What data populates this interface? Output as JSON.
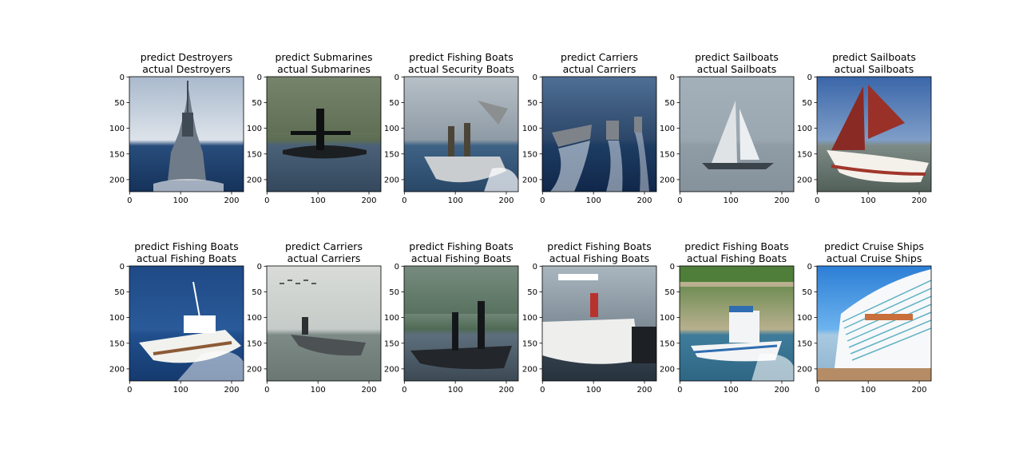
{
  "figure": {
    "panels": [
      {
        "predict_line": "predict Destroyers",
        "actual_line": "actual Destroyers",
        "image": "destroyer-photo",
        "palette": {
          "sky": "#a9b9cc",
          "horizon": "#dde3ea",
          "water": "#284d7c",
          "deep": "#15325a",
          "ship": "#6f7b88",
          "detail": "#3f4a55",
          "highlight": "#ffffff"
        }
      },
      {
        "predict_line": "predict Submarines",
        "actual_line": "actual Submarines",
        "image": "submarine-photo",
        "palette": {
          "sky": "#8f9a86",
          "horizon": "#5d6d52",
          "water": "#4a6178",
          "deep": "#34485d",
          "ship": "#1c1f22",
          "detail": "#0e1012",
          "highlight": "#9aa7b3"
        }
      },
      {
        "predict_line": "predict Fishing Boats",
        "actual_line": "actual Security Boats",
        "image": "security-boat-photo",
        "palette": {
          "sky": "#b7c0c7",
          "horizon": "#8e9aa5",
          "water": "#3e6285",
          "deep": "#2a4868",
          "ship": "#c9cdd0",
          "detail": "#4b4538",
          "highlight": "#ffffff"
        }
      },
      {
        "predict_line": "predict Carriers",
        "actual_line": "actual Carriers",
        "image": "carrier-group-photo",
        "palette": {
          "sky": "#4f6f95",
          "horizon": "#2b4668",
          "water": "#1d3c62",
          "deep": "#10274a",
          "ship": "#7e838a",
          "detail": "#4a4f56",
          "highlight": "#e8eef5"
        }
      },
      {
        "predict_line": "predict Sailboats",
        "actual_line": "actual Sailboats",
        "image": "sailboat-photo",
        "palette": {
          "sky": "#a3b0ba",
          "horizon": "#9aa7b1",
          "water": "#8f9ca6",
          "deep": "#85929c",
          "ship": "#dfe3e6",
          "detail": "#3b434a",
          "highlight": "#ffffff"
        }
      },
      {
        "predict_line": "predict Sailboats",
        "actual_line": "actual Sailboats",
        "image": "red-sail-boat-photo",
        "palette": {
          "sky": "#3a66a9",
          "horizon": "#7f9ec8",
          "water": "#7d8a86",
          "deep": "#52605a",
          "ship": "#8a2a25",
          "detail": "#2d1b17",
          "highlight": "#f4f1ea"
        }
      },
      {
        "predict_line": "predict Fishing Boats",
        "actual_line": "actual Fishing Boats",
        "image": "sport-fishing-yacht-photo",
        "palette": {
          "sky": "#1f4a86",
          "horizon": "#2a5a99",
          "water": "#214f8d",
          "deep": "#153a6e",
          "ship": "#f1f1ee",
          "detail": "#8c5a35",
          "highlight": "#ffffff"
        }
      },
      {
        "predict_line": "predict Carriers",
        "actual_line": "actual Carriers",
        "image": "aircraft-carrier-photo",
        "palette": {
          "sky": "#d9dcd8",
          "horizon": "#c5cbc8",
          "water": "#7d8a86",
          "deep": "#6a7773",
          "ship": "#4c5154",
          "detail": "#2c3033",
          "highlight": "#f2f4f3"
        }
      },
      {
        "predict_line": "predict Fishing Boats",
        "actual_line": "actual Fishing Boats",
        "image": "bass-boat-photo",
        "palette": {
          "sky": "#d6dbe0",
          "horizon": "#4f6a55",
          "water": "#5d6e7c",
          "deep": "#3c4955",
          "ship": "#23262a",
          "detail": "#14171a",
          "highlight": "#d9dee2"
        }
      },
      {
        "predict_line": "predict Fishing Boats",
        "actual_line": "actual Fishing Boats",
        "image": "center-console-boat-photo",
        "palette": {
          "sky": "#aab6bf",
          "horizon": "#7c8a95",
          "water": "#3b4957",
          "deep": "#27323d",
          "ship": "#eeeeec",
          "detail": "#b8322e",
          "highlight": "#ffffff"
        }
      },
      {
        "predict_line": "predict Fishing Boats",
        "actual_line": "actual Fishing Boats",
        "image": "cabin-fishing-boat-photo",
        "palette": {
          "sky": "#4f7d3a",
          "horizon": "#b8b08e",
          "water": "#3f7c9b",
          "deep": "#2e6683",
          "ship": "#f3f4f5",
          "detail": "#2f6db0",
          "highlight": "#ffffff"
        }
      },
      {
        "predict_line": "predict Cruise Ships",
        "actual_line": "actual Cruise Ships",
        "image": "cruise-ship-photo",
        "palette": {
          "sky": "#2c7ed6",
          "horizon": "#6cb3ee",
          "water": "#a7c9e2",
          "deep": "#8fb2cc",
          "ship": "#f7f8fa",
          "detail": "#c86f3c",
          "highlight": "#3aa0b8"
        }
      }
    ],
    "axes": {
      "xticks": [
        0,
        100,
        200
      ],
      "yticks": [
        0,
        50,
        100,
        150,
        200
      ],
      "xlim": [
        -0.5,
        223.5
      ],
      "ylim": [
        223.5,
        -0.5
      ],
      "colors": {
        "axis": "#000000",
        "text": "#000000"
      }
    }
  }
}
